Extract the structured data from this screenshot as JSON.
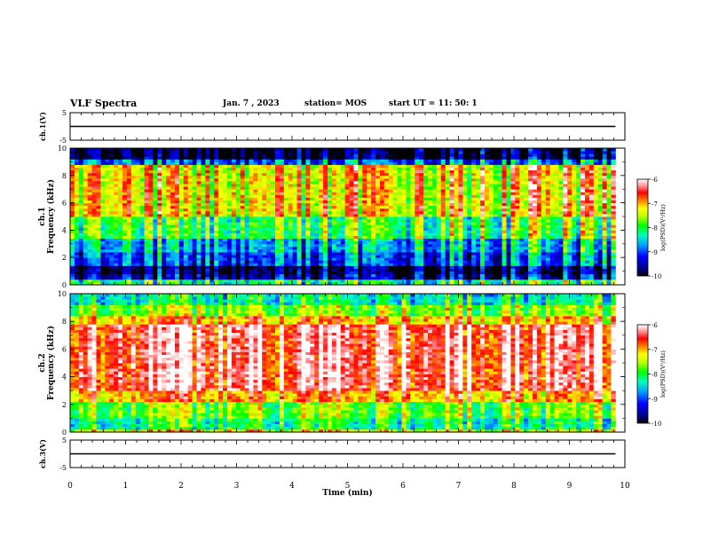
{
  "header": {
    "title": "VLF Spectra",
    "date": "Jan. 7 , 2023",
    "station": "station= MOS",
    "start": "start UT = 11: 50: 1"
  },
  "colors": {
    "colormap": [
      "#000000",
      "#000080",
      "#0000ff",
      "#0080ff",
      "#00ffff",
      "#00ff80",
      "#00ff00",
      "#80ff00",
      "#ffff00",
      "#ff8000",
      "#ff0000",
      "#ff8080",
      "#ffffff"
    ],
    "frame": "#000000"
  },
  "chart_data": [
    {
      "type": "line",
      "panel": "ch1-waveform",
      "ylabel": "ch.1(V)",
      "ylim": [
        -5,
        5
      ],
      "yticks": [
        "5",
        "-5"
      ],
      "series": [
        {
          "x": [
            0,
            9.83
          ],
          "y": [
            0,
            0
          ]
        }
      ]
    },
    {
      "type": "heatmap",
      "panel": "ch1-spectrogram",
      "ylabel": "ch.1 Frequency (kHz)",
      "ylim": [
        0,
        10
      ],
      "yticks": [
        "0",
        "2",
        "4",
        "6",
        "8",
        "10"
      ],
      "colorbar": {
        "label": "log(PSD)(V²/Hz)",
        "range": [
          -10,
          -6
        ],
        "ticks": [
          "-6",
          "-7",
          "-8",
          "-9",
          "-10"
        ]
      }
    },
    {
      "type": "heatmap",
      "panel": "ch2-spectrogram",
      "ylabel": "ch.2 Frequency (kHz)",
      "ylim": [
        0,
        10
      ],
      "yticks": [
        "0",
        "2",
        "4",
        "6",
        "8",
        "10"
      ],
      "colorbar": {
        "label": "log(PSD)(V²/Hz)",
        "range": [
          -10,
          -6
        ],
        "ticks": [
          "-6",
          "-7",
          "-8",
          "-9",
          "-10"
        ]
      }
    },
    {
      "type": "line",
      "panel": "ch3-waveform",
      "ylabel": "ch.3(V)",
      "ylim": [
        -5,
        5
      ],
      "yticks": [
        "5",
        "-5"
      ],
      "series": [
        {
          "x": [
            0,
            9.83
          ],
          "y": [
            0,
            0
          ]
        }
      ]
    }
  ],
  "xaxis": {
    "label": "Time (min)",
    "range": [
      0,
      10
    ],
    "ticks": [
      "0",
      "1",
      "2",
      "3",
      "4",
      "5",
      "6",
      "7",
      "8",
      "9",
      "10"
    ]
  }
}
